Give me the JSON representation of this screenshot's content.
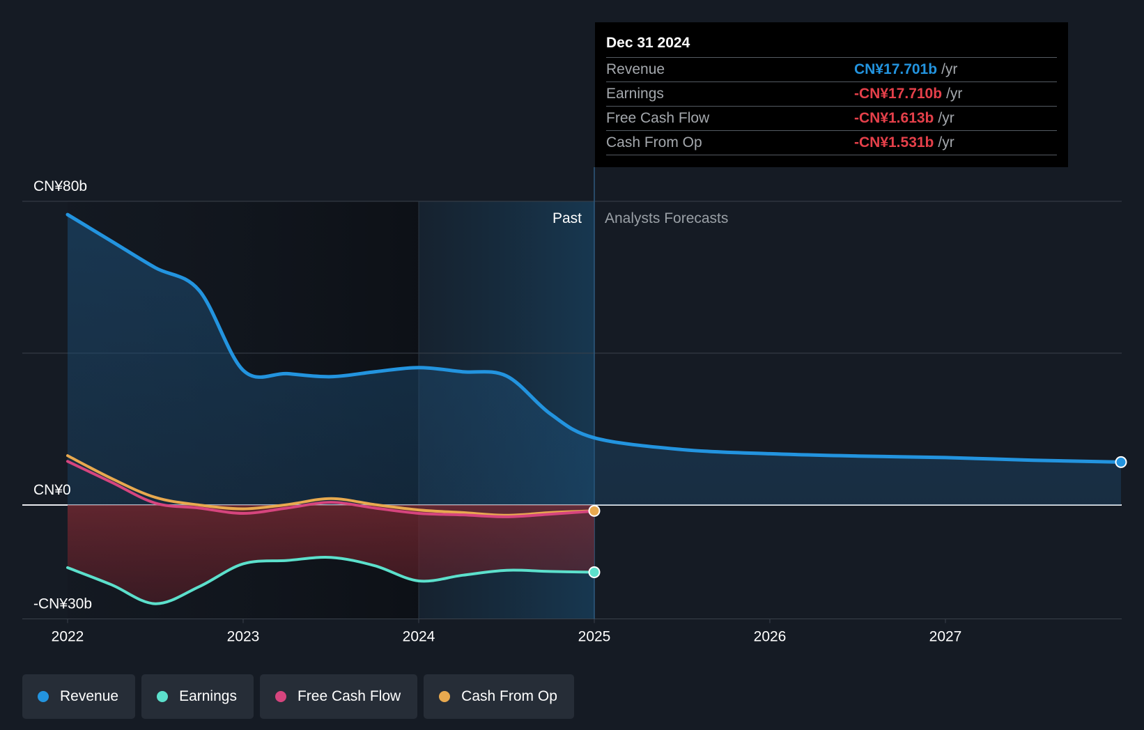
{
  "chart_data": {
    "type": "area",
    "y_axis": {
      "unit": "CN¥ billions",
      "ylim": [
        -30,
        80
      ],
      "tick_labels": [
        {
          "value": 80,
          "label": "CN¥80b"
        },
        {
          "value": 0,
          "label": "CN¥0"
        },
        {
          "value": -30,
          "label": "-CN¥30b"
        }
      ]
    },
    "x_axis": {
      "range": [
        2022,
        2028
      ],
      "ticks": [
        2022,
        2023,
        2024,
        2025,
        2026,
        2027
      ]
    },
    "past_label": "Past",
    "forecast_label": "Analysts Forecasts",
    "divider_x": 2025,
    "highlight_start_x": 2024,
    "series": [
      {
        "name": "Revenue",
        "color": "#2394df",
        "points": [
          [
            2022,
            76.5
          ],
          [
            2022.25,
            69.5
          ],
          [
            2022.5,
            62.5
          ],
          [
            2022.75,
            56.5
          ],
          [
            2023.0,
            35.5
          ],
          [
            2023.25,
            34.6
          ],
          [
            2023.5,
            33.8
          ],
          [
            2023.75,
            35.1
          ],
          [
            2024.0,
            36.2
          ],
          [
            2024.25,
            35.1
          ],
          [
            2024.5,
            34.0
          ],
          [
            2024.75,
            24.0
          ],
          [
            2025.0,
            17.7
          ],
          [
            2025.5,
            14.6
          ],
          [
            2026.0,
            13.5
          ],
          [
            2026.5,
            12.9
          ],
          [
            2027.0,
            12.5
          ],
          [
            2027.5,
            11.8
          ],
          [
            2028.0,
            11.3
          ]
        ]
      },
      {
        "name": "Earnings",
        "color": "#5ce0cc",
        "points": [
          [
            2022,
            -16.5
          ],
          [
            2022.25,
            -21.0
          ],
          [
            2022.5,
            -26.0
          ],
          [
            2022.75,
            -21.5
          ],
          [
            2023.0,
            -15.5
          ],
          [
            2023.25,
            -14.6
          ],
          [
            2023.5,
            -13.8
          ],
          [
            2023.75,
            -16.0
          ],
          [
            2024.0,
            -20.0
          ],
          [
            2024.25,
            -18.5
          ],
          [
            2024.5,
            -17.2
          ],
          [
            2024.75,
            -17.5
          ],
          [
            2025.0,
            -17.71
          ]
        ]
      },
      {
        "name": "Free Cash Flow",
        "color": "#d6457e",
        "points": [
          [
            2022,
            11.5
          ],
          [
            2022.25,
            6.0
          ],
          [
            2022.5,
            0.5
          ],
          [
            2022.75,
            -0.8
          ],
          [
            2023.0,
            -2.2
          ],
          [
            2023.25,
            -0.8
          ],
          [
            2023.5,
            0.7
          ],
          [
            2023.75,
            -0.8
          ],
          [
            2024.0,
            -2.2
          ],
          [
            2024.25,
            -2.6
          ],
          [
            2024.5,
            -3.1
          ],
          [
            2024.75,
            -2.4
          ],
          [
            2025.0,
            -1.613
          ]
        ]
      },
      {
        "name": "Cash From Op",
        "color": "#e8a94f",
        "points": [
          [
            2022,
            13.0
          ],
          [
            2022.25,
            7.0
          ],
          [
            2022.5,
            2.0
          ],
          [
            2022.75,
            0.0
          ],
          [
            2023.0,
            -1.0
          ],
          [
            2023.25,
            0.1
          ],
          [
            2023.5,
            1.7
          ],
          [
            2023.75,
            0.1
          ],
          [
            2024.0,
            -1.3
          ],
          [
            2024.25,
            -2.0
          ],
          [
            2024.5,
            -2.7
          ],
          [
            2024.75,
            -2.0
          ],
          [
            2025.0,
            -1.531
          ]
        ]
      }
    ]
  },
  "tooltip": {
    "date": "Dec 31 2024",
    "unit": "/yr",
    "rows": [
      {
        "label": "Revenue",
        "value": "CN¥17.701b",
        "color": "#2394df"
      },
      {
        "label": "Earnings",
        "value": "-CN¥17.710b",
        "color": "#e5404a"
      },
      {
        "label": "Free Cash Flow",
        "value": "-CN¥1.613b",
        "color": "#e5404a"
      },
      {
        "label": "Cash From Op",
        "value": "-CN¥1.531b",
        "color": "#e5404a"
      }
    ]
  },
  "legend": [
    {
      "label": "Revenue",
      "color": "#2394df"
    },
    {
      "label": "Earnings",
      "color": "#5ce0cc"
    },
    {
      "label": "Free Cash Flow",
      "color": "#d6457e"
    },
    {
      "label": "Cash From Op",
      "color": "#e8a94f"
    }
  ]
}
